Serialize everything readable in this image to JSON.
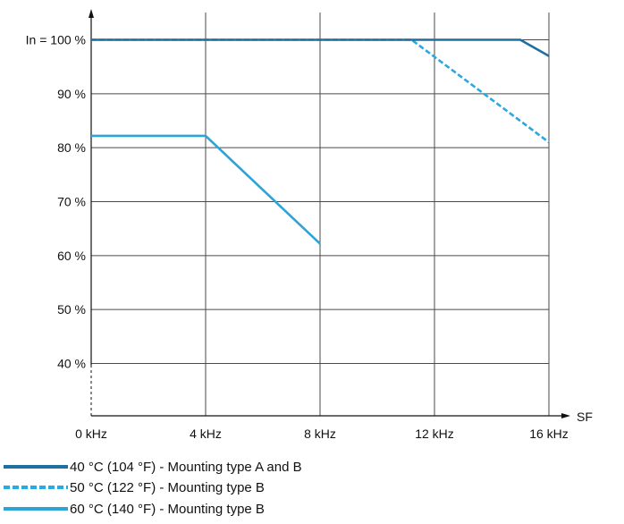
{
  "chart_data": {
    "type": "line",
    "ylabel": "In = 100 %",
    "xlabel": "SF",
    "xlim": [
      0,
      16
    ],
    "ylim": [
      30,
      105
    ],
    "x_ticks": [
      {
        "value": 0,
        "label": "0 kHz"
      },
      {
        "value": 4,
        "label": "4 kHz"
      },
      {
        "value": 8,
        "label": "8 kHz"
      },
      {
        "value": 12,
        "label": "12 kHz"
      },
      {
        "value": 16,
        "label": "16 kHz"
      }
    ],
    "y_ticks": [
      {
        "value": 100,
        "label": "In = 100 %"
      },
      {
        "value": 90,
        "label": "90 %"
      },
      {
        "value": 80,
        "label": "80 %"
      },
      {
        "value": 70,
        "label": "70 %"
      },
      {
        "value": 60,
        "label": "60 %"
      },
      {
        "value": 50,
        "label": "50 %"
      },
      {
        "value": 40,
        "label": "40 %"
      }
    ],
    "grid": true,
    "legend_position": "bottom-left",
    "series": [
      {
        "name": "40 °C (104 °F) - Mounting type A and B",
        "color": "#1f6fa0",
        "style": "solid",
        "points": [
          [
            0,
            100
          ],
          [
            11.2,
            100
          ],
          [
            15,
            100
          ],
          [
            16,
            97
          ]
        ]
      },
      {
        "name": "50 °C (122 °F) - Mounting type B",
        "color": "#2aa8e0",
        "style": "dashed",
        "points": [
          [
            0,
            100
          ],
          [
            11.2,
            100
          ],
          [
            16,
            81
          ]
        ]
      },
      {
        "name": "60 °C (140 °F) - Mounting type B",
        "color": "#2ea3d6",
        "style": "solid",
        "points": [
          [
            0,
            82.2
          ],
          [
            4,
            82.2
          ],
          [
            8,
            62.2
          ]
        ]
      }
    ]
  }
}
